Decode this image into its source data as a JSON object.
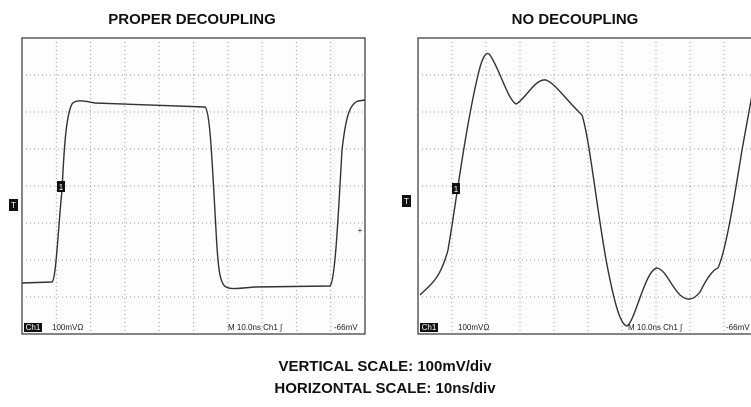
{
  "panels": [
    {
      "title": "PROPER DECOUPLING",
      "channel": "Ch1",
      "volts": "100mVΩ",
      "timebase": "M 10.0ns Ch1 ∫",
      "trigger": "-66mV",
      "marker": "1",
      "trigger_marker": "T"
    },
    {
      "title": "NO DECOUPLING",
      "channel": "Ch1",
      "volts": "100mVΩ",
      "timebase": "M 10.0ns Ch1 ∫",
      "trigger": "-66mV",
      "marker": "1",
      "trigger_marker": "T"
    }
  ],
  "caption": {
    "line1": "VERTICAL SCALE: 100mV/div",
    "line2": "HORIZONTAL SCALE: 10ns/div"
  }
}
